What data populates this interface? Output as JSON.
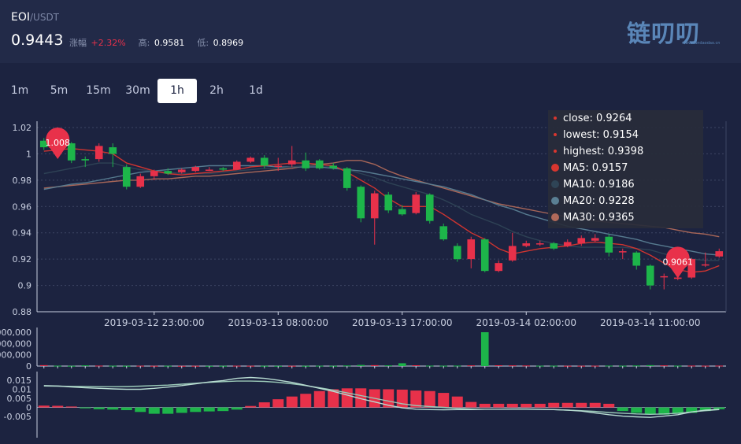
{
  "header": {
    "symbol": "EOI",
    "quote": "/USDT",
    "last_price": "0.9443",
    "change_label": "涨幅",
    "change_value": "+2.32%",
    "high_label": "高:",
    "high_value": "0.9581",
    "low_label": "低:",
    "low_value": "0.8969",
    "logo_text": "链叨叨",
    "logo_url": "www.liandaodao.cn"
  },
  "tabs": [
    {
      "label": "1m",
      "active": false
    },
    {
      "label": "5m",
      "active": false
    },
    {
      "label": "15m",
      "active": false
    },
    {
      "label": "30m",
      "active": false
    },
    {
      "label": "1h",
      "active": true
    },
    {
      "label": "2h",
      "active": false
    },
    {
      "label": "1d",
      "active": false
    }
  ],
  "legend": {
    "close": "close: 0.9264",
    "lowest": "lowest: 0.9154",
    "highest": "highest: 0.9398",
    "ma5": "MA5: 0.9157",
    "ma10": "MA10: 0.9186",
    "ma20": "MA20: 0.9228",
    "ma30": "MA30: 0.9365"
  },
  "colors": {
    "up": "#e8314a",
    "down": "#1db54a",
    "ma5": "#d9362f",
    "ma10": "#2f4456",
    "ma20": "#5a7f93",
    "ma30": "#b06a5a",
    "macd_line": "#b8dcd2",
    "macd_signal": "#9bcab8"
  },
  "chart_data": [
    {
      "type": "candlestick",
      "ylim": [
        0.88,
        1.02
      ],
      "y_ticks": [
        "1.02",
        "1",
        "0.98",
        "0.96",
        "0.94",
        "0.92",
        "0.9",
        "0.88"
      ],
      "x_tick_labels": [
        "2019-03-12 23:00:00",
        "2019-03-13 08:00:00",
        "2019-03-13 17:00:00",
        "2019-03-14 02:00:00",
        "2019-03-14 11:00:00"
      ],
      "max_marker": "1.008",
      "min_marker": "0.9061",
      "candles": [
        [
          1.01,
          1.005,
          1.012,
          1.003
        ],
        [
          1.008,
          1.007,
          1.01,
          1.003
        ],
        [
          1.008,
          0.995,
          1.009,
          0.993
        ],
        [
          0.996,
          0.995,
          0.998,
          0.99
        ],
        [
          0.996,
          1.006,
          1.008,
          0.994
        ],
        [
          1.005,
          1.0,
          1.008,
          0.99
        ],
        [
          0.99,
          0.975,
          0.992,
          0.973
        ],
        [
          0.975,
          0.983,
          0.985,
          0.974
        ],
        [
          0.983,
          0.987,
          0.988,
          0.98
        ],
        [
          0.987,
          0.985,
          0.989,
          0.984
        ],
        [
          0.986,
          0.988,
          0.989,
          0.985
        ],
        [
          0.987,
          0.99,
          0.991,
          0.986
        ],
        [
          0.988,
          0.988,
          0.99,
          0.987
        ],
        [
          0.989,
          0.988,
          0.99,
          0.987
        ],
        [
          0.988,
          0.994,
          0.995,
          0.988
        ],
        [
          0.994,
          0.997,
          0.998,
          0.993
        ],
        [
          0.997,
          0.991,
          0.999,
          0.989
        ],
        [
          0.991,
          0.991,
          0.997,
          0.987
        ],
        [
          0.992,
          0.995,
          1.006,
          0.99
        ],
        [
          0.995,
          0.989,
          1.001,
          0.987
        ],
        [
          0.995,
          0.989,
          0.996,
          0.988
        ],
        [
          0.991,
          0.989,
          0.993,
          0.988
        ],
        [
          0.989,
          0.974,
          0.99,
          0.972
        ],
        [
          0.975,
          0.951,
          0.976,
          0.948
        ],
        [
          0.951,
          0.97,
          0.972,
          0.931
        ],
        [
          0.969,
          0.957,
          0.971,
          0.955
        ],
        [
          0.958,
          0.954,
          0.961,
          0.953
        ],
        [
          0.955,
          0.969,
          0.971,
          0.954
        ],
        [
          0.969,
          0.949,
          0.97,
          0.947
        ],
        [
          0.945,
          0.935,
          0.947,
          0.934
        ],
        [
          0.93,
          0.92,
          0.932,
          0.918
        ],
        [
          0.92,
          0.935,
          0.937,
          0.913
        ],
        [
          0.935,
          0.911,
          0.936,
          0.91
        ],
        [
          0.911,
          0.917,
          0.919,
          0.91
        ],
        [
          0.919,
          0.93,
          0.94,
          0.918
        ],
        [
          0.93,
          0.932,
          0.934,
          0.929
        ],
        [
          0.932,
          0.932,
          0.934,
          0.93
        ],
        [
          0.932,
          0.928,
          0.933,
          0.927
        ],
        [
          0.93,
          0.933,
          0.935,
          0.929
        ],
        [
          0.932,
          0.936,
          0.938,
          0.93
        ],
        [
          0.934,
          0.936,
          0.939,
          0.933
        ],
        [
          0.937,
          0.925,
          0.939,
          0.922
        ],
        [
          0.926,
          0.926,
          0.928,
          0.92
        ],
        [
          0.925,
          0.915,
          0.926,
          0.912
        ],
        [
          0.915,
          0.9,
          0.916,
          0.897
        ],
        [
          0.907,
          0.907,
          0.909,
          0.897
        ],
        [
          0.905,
          0.906,
          0.906,
          0.904
        ],
        [
          0.906,
          0.92,
          0.921,
          0.905
        ],
        [
          0.916,
          0.916,
          0.925,
          0.914
        ],
        [
          0.922,
          0.926,
          0.928,
          0.921
        ]
      ],
      "ma5": [
        1.002,
        1.003,
        1.004,
        1.003,
        1.002,
        1.0,
        0.993,
        0.99,
        0.987,
        0.985,
        0.984,
        0.985,
        0.986,
        0.987,
        0.988,
        0.99,
        0.991,
        0.992,
        0.993,
        0.993,
        0.992,
        0.991,
        0.986,
        0.98,
        0.974,
        0.966,
        0.96,
        0.96,
        0.96,
        0.954,
        0.947,
        0.94,
        0.935,
        0.928,
        0.924,
        0.926,
        0.928,
        0.929,
        0.93,
        0.932,
        0.933,
        0.932,
        0.931,
        0.928,
        0.923,
        0.917,
        0.912,
        0.91,
        0.911,
        0.915
      ],
      "ma10": [
        0.985,
        0.987,
        0.989,
        0.991,
        0.993,
        0.993,
        0.99,
        0.988,
        0.987,
        0.986,
        0.985,
        0.985,
        0.985,
        0.986,
        0.987,
        0.988,
        0.989,
        0.989,
        0.99,
        0.991,
        0.991,
        0.99,
        0.988,
        0.985,
        0.982,
        0.978,
        0.975,
        0.972,
        0.969,
        0.965,
        0.96,
        0.954,
        0.95,
        0.946,
        0.941,
        0.937,
        0.934,
        0.932,
        0.93,
        0.929,
        0.929,
        0.929,
        0.929,
        0.928,
        0.927,
        0.924,
        0.922,
        0.92,
        0.919,
        0.919
      ],
      "ma20": [
        0.973,
        0.975,
        0.977,
        0.978,
        0.98,
        0.982,
        0.984,
        0.986,
        0.987,
        0.988,
        0.989,
        0.99,
        0.991,
        0.991,
        0.991,
        0.991,
        0.991,
        0.99,
        0.99,
        0.99,
        0.99,
        0.989,
        0.988,
        0.987,
        0.985,
        0.983,
        0.981,
        0.979,
        0.977,
        0.975,
        0.972,
        0.969,
        0.965,
        0.961,
        0.958,
        0.954,
        0.951,
        0.948,
        0.945,
        0.943,
        0.941,
        0.939,
        0.937,
        0.935,
        0.932,
        0.93,
        0.928,
        0.926,
        0.924,
        0.923
      ],
      "ma30": [
        0.974,
        0.975,
        0.976,
        0.977,
        0.978,
        0.979,
        0.98,
        0.98,
        0.981,
        0.981,
        0.982,
        0.983,
        0.983,
        0.984,
        0.985,
        0.986,
        0.987,
        0.988,
        0.989,
        0.991,
        0.992,
        0.993,
        0.995,
        0.995,
        0.992,
        0.987,
        0.983,
        0.98,
        0.977,
        0.974,
        0.971,
        0.968,
        0.965,
        0.962,
        0.96,
        0.958,
        0.956,
        0.954,
        0.952,
        0.951,
        0.949,
        0.948,
        0.947,
        0.946,
        0.945,
        0.944,
        0.942,
        0.94,
        0.939,
        0.937
      ]
    },
    {
      "type": "bar",
      "title": "volume",
      "ylim": [
        0,
        3000000
      ],
      "y_ticks": [
        "3,000,000",
        "2,000,000",
        "1,000,000",
        "0"
      ],
      "values": [
        80000,
        30000,
        20000,
        60000,
        40000,
        30000,
        20000,
        30000,
        20000,
        25000,
        15000,
        20000,
        15000,
        20000,
        30000,
        25000,
        20000,
        15000,
        20000,
        20000,
        30000,
        20000,
        50000,
        100000,
        80000,
        60000,
        250000,
        70000,
        40000,
        30000,
        40000,
        60000,
        3000000,
        70000,
        60000,
        50000,
        30000,
        30000,
        20000,
        25000,
        30000,
        40000,
        30000,
        50000,
        80000,
        60000,
        30000,
        40000,
        30000,
        40000
      ],
      "up": [
        1,
        0,
        0,
        0,
        1,
        0,
        0,
        1,
        1,
        0,
        1,
        1,
        0,
        0,
        1,
        1,
        0,
        0,
        1,
        0,
        0,
        0,
        0,
        0,
        1,
        0,
        0,
        1,
        0,
        0,
        0,
        1,
        0,
        1,
        1,
        1,
        0,
        0,
        1,
        1,
        1,
        0,
        0,
        0,
        0,
        1,
        0,
        1,
        1,
        1
      ]
    },
    {
      "type": "bar",
      "title": "macd",
      "ylim": [
        -0.008,
        0.018
      ],
      "y_ticks": [
        "0.015",
        "0.01",
        "0.005",
        "0",
        "-0.005"
      ],
      "histogram": [
        0.001,
        0.0009,
        0.0005,
        -0.0005,
        -0.001,
        -0.0012,
        -0.0015,
        -0.0025,
        -0.0035,
        -0.0035,
        -0.003,
        -0.0025,
        -0.0022,
        -0.002,
        -0.0012,
        0.0008,
        0.0028,
        0.0045,
        0.006,
        0.0075,
        0.009,
        0.01,
        0.0105,
        0.0105,
        0.01,
        0.01,
        0.0098,
        0.0093,
        0.009,
        0.008,
        0.006,
        0.003,
        0.002,
        0.002,
        0.002,
        0.002,
        0.002,
        0.0025,
        0.0025,
        0.0025,
        0.0025,
        0.002,
        -0.002,
        -0.003,
        -0.0038,
        -0.004,
        -0.0035,
        -0.003,
        -0.002,
        -0.001
      ],
      "macd": [
        0.012,
        0.0118,
        0.0113,
        0.0108,
        0.0105,
        0.0102,
        0.01,
        0.01,
        0.0105,
        0.0112,
        0.012,
        0.013,
        0.014,
        0.0148,
        0.016,
        0.0165,
        0.016,
        0.015,
        0.0138,
        0.0122,
        0.0105,
        0.0088,
        0.0068,
        0.0048,
        0.003,
        0.0012,
        -0.0002,
        -0.001,
        -0.0012,
        -0.0013,
        -0.0012,
        -0.0012,
        -0.001,
        -0.001,
        -0.0008,
        -0.0008,
        -0.001,
        -0.0012,
        -0.0015,
        -0.002,
        -0.003,
        -0.004,
        -0.0048,
        -0.0052,
        -0.0055,
        -0.0048,
        -0.004,
        -0.0025,
        -0.0015,
        -0.001
      ],
      "signal": [
        0.0118,
        0.0117,
        0.0116,
        0.0115,
        0.0114,
        0.0114,
        0.0115,
        0.0117,
        0.012,
        0.0123,
        0.0128,
        0.0133,
        0.0138,
        0.0142,
        0.0145,
        0.0145,
        0.0143,
        0.0138,
        0.013,
        0.012,
        0.0108,
        0.0095,
        0.008,
        0.0065,
        0.005,
        0.0035,
        0.002,
        0.001,
        0.0005,
        0.0,
        -0.0005,
        -0.0008,
        -0.001,
        -0.001,
        -0.001,
        -0.001,
        -0.0011,
        -0.0012,
        -0.0015,
        -0.0018,
        -0.0022,
        -0.0028,
        -0.0032,
        -0.0036,
        -0.0038,
        -0.0036,
        -0.0032,
        -0.0025,
        -0.0018,
        -0.0012
      ]
    }
  ]
}
